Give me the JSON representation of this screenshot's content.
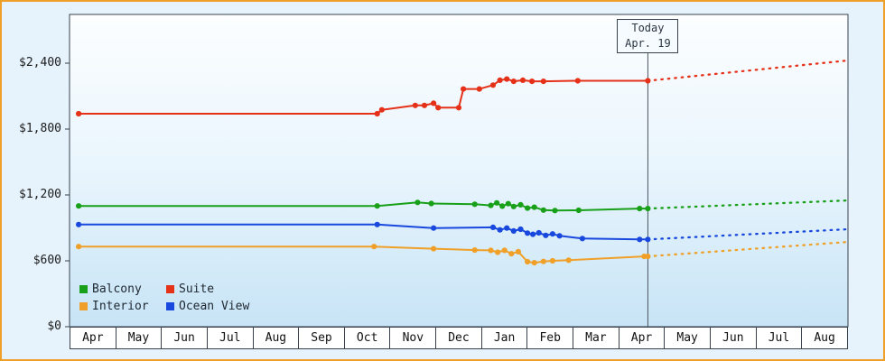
{
  "frame": {
    "background": "#e6f3fc",
    "border_color": "#f0a028"
  },
  "chart_data": {
    "type": "line",
    "title": "",
    "x_axis": {
      "months": [
        "Apr",
        "May",
        "Jun",
        "Jul",
        "Aug",
        "Sep",
        "Oct",
        "Nov",
        "Dec",
        "Jan",
        "Feb",
        "Mar",
        "Apr",
        "May",
        "Jun",
        "Jul",
        "Aug"
      ]
    },
    "y_axis": {
      "ticks": [
        {
          "value": 0,
          "label": "$0"
        },
        {
          "value": 600,
          "label": "$600"
        },
        {
          "value": 1200,
          "label": "$1,200"
        },
        {
          "value": 1800,
          "label": "$1,800"
        },
        {
          "value": 2400,
          "label": "$2,400"
        }
      ],
      "ylim": [
        0,
        2840
      ],
      "grid": false
    },
    "today": {
      "x_month": 12.63,
      "line1": "Today",
      "line2": "Apr. 19"
    },
    "legend": {
      "position": "bottom-left-inside",
      "items": [
        {
          "name": "Balcony",
          "color": "#18a018"
        },
        {
          "name": "Suite",
          "color": "#e63119"
        },
        {
          "name": "Interior",
          "color": "#f0a028"
        },
        {
          "name": "Ocean View",
          "color": "#1848dd"
        }
      ]
    },
    "series": [
      {
        "name": "Balcony",
        "color": "#18a018",
        "history": [
          [
            0.2,
            1100
          ],
          [
            6.72,
            1100
          ],
          [
            7.6,
            1132
          ],
          [
            7.9,
            1122
          ],
          [
            8.85,
            1115
          ],
          [
            9.2,
            1105
          ],
          [
            9.33,
            1128
          ],
          [
            9.45,
            1098
          ],
          [
            9.58,
            1120
          ],
          [
            9.7,
            1095
          ],
          [
            9.85,
            1110
          ],
          [
            10.0,
            1080
          ],
          [
            10.15,
            1088
          ],
          [
            10.35,
            1062
          ],
          [
            10.6,
            1058
          ],
          [
            11.12,
            1060
          ],
          [
            12.45,
            1076
          ],
          [
            12.63,
            1076
          ]
        ],
        "forecast": [
          [
            12.63,
            1076
          ],
          [
            17,
            1150
          ]
        ]
      },
      {
        "name": "Suite",
        "color": "#e63119",
        "history": [
          [
            0.2,
            1940
          ],
          [
            6.72,
            1940
          ],
          [
            6.82,
            1975
          ],
          [
            7.55,
            2015
          ],
          [
            7.75,
            2015
          ],
          [
            7.95,
            2035
          ],
          [
            8.05,
            1995
          ],
          [
            8.5,
            1995
          ],
          [
            8.6,
            2165
          ],
          [
            8.95,
            2165
          ],
          [
            9.25,
            2200
          ],
          [
            9.4,
            2245
          ],
          [
            9.55,
            2255
          ],
          [
            9.7,
            2235
          ],
          [
            9.9,
            2245
          ],
          [
            10.1,
            2235
          ],
          [
            10.35,
            2235
          ],
          [
            11.1,
            2240
          ],
          [
            12.63,
            2240
          ]
        ],
        "forecast": [
          [
            12.63,
            2240
          ],
          [
            17,
            2425
          ]
        ]
      },
      {
        "name": "Interior",
        "color": "#f0a028",
        "history": [
          [
            0.2,
            730
          ],
          [
            6.65,
            730
          ],
          [
            7.95,
            710
          ],
          [
            8.85,
            698
          ],
          [
            9.2,
            695
          ],
          [
            9.35,
            678
          ],
          [
            9.5,
            695
          ],
          [
            9.65,
            665
          ],
          [
            9.8,
            683
          ],
          [
            10.0,
            592
          ],
          [
            10.15,
            583
          ],
          [
            10.35,
            594
          ],
          [
            10.55,
            600
          ],
          [
            10.9,
            606
          ],
          [
            12.55,
            640
          ],
          [
            12.63,
            640
          ]
        ],
        "forecast": [
          [
            12.63,
            640
          ],
          [
            17,
            772
          ]
        ]
      },
      {
        "name": "Ocean View",
        "color": "#1848dd",
        "history": [
          [
            0.2,
            930
          ],
          [
            6.72,
            930
          ],
          [
            7.95,
            898
          ],
          [
            9.25,
            905
          ],
          [
            9.4,
            882
          ],
          [
            9.55,
            898
          ],
          [
            9.7,
            872
          ],
          [
            9.85,
            888
          ],
          [
            10.0,
            852
          ],
          [
            10.12,
            842
          ],
          [
            10.25,
            855
          ],
          [
            10.4,
            832
          ],
          [
            10.55,
            845
          ],
          [
            10.7,
            828
          ],
          [
            11.2,
            803
          ],
          [
            12.45,
            795
          ],
          [
            12.63,
            795
          ]
        ],
        "forecast": [
          [
            12.63,
            795
          ],
          [
            17,
            888
          ]
        ]
      }
    ]
  }
}
